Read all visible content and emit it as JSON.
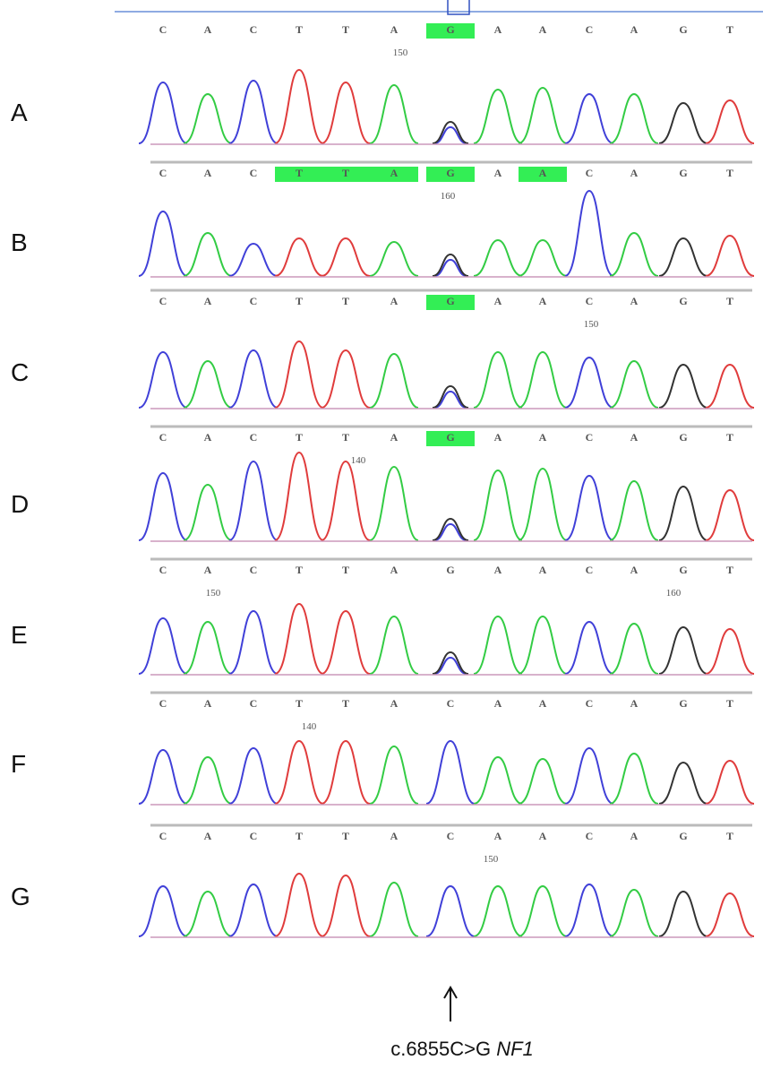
{
  "panels": [
    {
      "label": "A",
      "bases": [
        "C",
        "A",
        "C",
        "T",
        "T",
        "A",
        "G",
        "A",
        "A",
        "C",
        "A",
        "G",
        "T"
      ],
      "highlighted": [
        false,
        false,
        false,
        false,
        false,
        false,
        true,
        false,
        false,
        false,
        false,
        false,
        false
      ],
      "numbers": [
        150
      ]
    },
    {
      "label": "B",
      "bases": [
        "C",
        "A",
        "C",
        "T",
        "T",
        "A",
        "G",
        "A",
        "A",
        "C",
        "A",
        "G",
        "T"
      ],
      "highlighted": [
        false,
        false,
        false,
        true,
        true,
        true,
        true,
        false,
        true,
        false,
        false,
        false,
        false
      ],
      "numbers": [
        160
      ]
    },
    {
      "label": "C",
      "bases": [
        "C",
        "A",
        "C",
        "T",
        "T",
        "A",
        "G",
        "A",
        "A",
        "C",
        "A",
        "G",
        "T"
      ],
      "highlighted": [
        false,
        false,
        false,
        false,
        false,
        false,
        true,
        false,
        false,
        false,
        false,
        false,
        false
      ],
      "numbers": [
        150
      ]
    },
    {
      "label": "D",
      "bases": [
        "C",
        "A",
        "C",
        "T",
        "T",
        "A",
        "G",
        "A",
        "A",
        "C",
        "A",
        "G",
        "T"
      ],
      "highlighted": [
        false,
        false,
        false,
        false,
        false,
        false,
        true,
        false,
        false,
        false,
        false,
        false,
        false
      ],
      "numbers": [
        140
      ]
    },
    {
      "label": "E",
      "bases": [
        "C",
        "A",
        "C",
        "T",
        "T",
        "A",
        "G",
        "A",
        "A",
        "C",
        "A",
        "G",
        "T"
      ],
      "highlighted": [
        false,
        false,
        false,
        false,
        false,
        false,
        false,
        false,
        false,
        false,
        false,
        false,
        false
      ],
      "numbers": [
        150,
        160
      ]
    },
    {
      "label": "F",
      "bases": [
        "C",
        "A",
        "C",
        "T",
        "T",
        "A",
        "C",
        "A",
        "A",
        "C",
        "A",
        "G",
        "T"
      ],
      "highlighted": [
        false,
        false,
        false,
        false,
        false,
        false,
        false,
        false,
        false,
        false,
        false,
        false,
        false
      ],
      "numbers": [
        140
      ]
    },
    {
      "label": "G",
      "bases": [
        "C",
        "A",
        "C",
        "T",
        "T",
        "A",
        "C",
        "A",
        "A",
        "C",
        "A",
        "G",
        "T"
      ],
      "highlighted": [
        false,
        false,
        false,
        false,
        false,
        false,
        false,
        false,
        false,
        false,
        false,
        false,
        false
      ],
      "numbers": [
        150
      ]
    }
  ],
  "caption": {
    "variant": "c.6855C>G",
    "gene": "NF1"
  }
}
